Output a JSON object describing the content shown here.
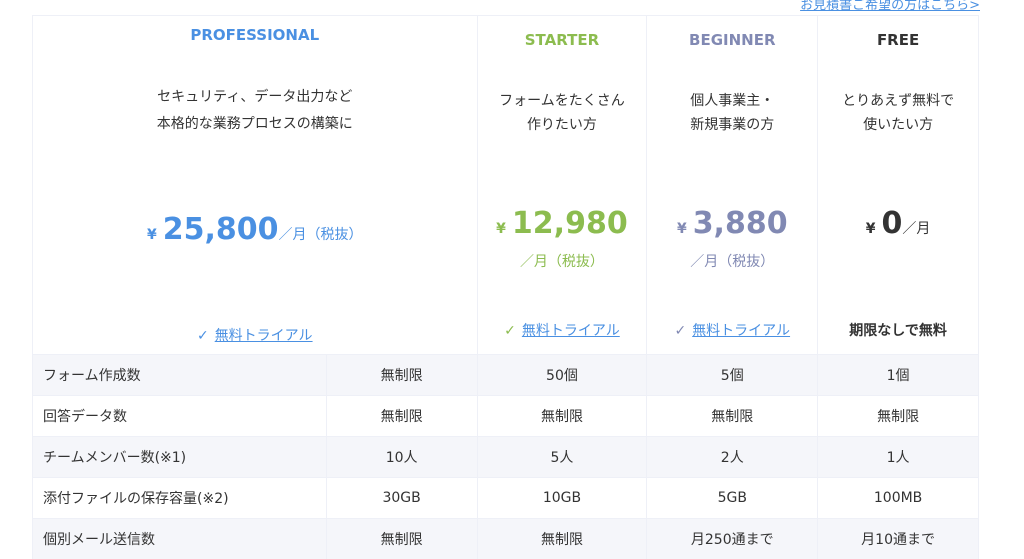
{
  "quote_link": "お見積書ご希望の方はこちら>",
  "colors": {
    "professional": "#4a90e2",
    "starter": "#8cbc4f",
    "beginner": "#8189b3",
    "free": "#333333"
  },
  "plans": [
    {
      "name": "PROFESSIONAL",
      "desc1": "セキュリティ、データ出力など",
      "desc2": "本格的な業務プロセスの構築に",
      "yen": "¥",
      "amount": "25,800",
      "per": "／月（税抜）",
      "trial": "無料トライアル"
    },
    {
      "name": "STARTER",
      "desc1": "フォームをたくさん",
      "desc2": "作りたい方",
      "yen": "¥",
      "amount": "12,980",
      "per": "／月（税抜）",
      "trial": "無料トライアル"
    },
    {
      "name": "BEGINNER",
      "desc1": "個人事業主・",
      "desc2": "新規事業の方",
      "yen": "¥",
      "amount": "3,880",
      "per": "／月（税抜）",
      "trial": "無料トライアル"
    },
    {
      "name": "FREE",
      "desc1": "とりあえず無料で",
      "desc2": "使いたい方",
      "yen": "¥",
      "amount": "0",
      "per": "／月",
      "trial": "期限なしで無料"
    }
  ],
  "rows": [
    {
      "label": "フォーム作成数",
      "values": [
        "無制限",
        "50個",
        "5個",
        "1個"
      ]
    },
    {
      "label": "回答データ数",
      "values": [
        "無制限",
        "無制限",
        "無制限",
        "無制限"
      ]
    },
    {
      "label": "チームメンバー数(※1)",
      "values": [
        "10人",
        "5人",
        "2人",
        "1人"
      ]
    },
    {
      "label": "添付ファイルの保存容量(※2)",
      "values": [
        "30GB",
        "10GB",
        "5GB",
        "100MB"
      ]
    },
    {
      "label": "個別メール送信数",
      "values": [
        "無制限",
        "無制限",
        "月250通まで",
        "月10通まで"
      ]
    }
  ]
}
